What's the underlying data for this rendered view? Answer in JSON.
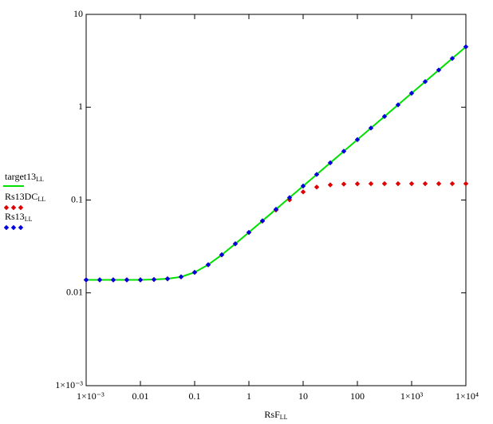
{
  "chart_data": {
    "type": "line",
    "xlabel": "RsF",
    "xlabel_sub": "LL",
    "xscale": "log",
    "yscale": "log",
    "grid": false,
    "legend": "left",
    "xlim": [
      0.001,
      10000
    ],
    "ylim": [
      0.001,
      10
    ],
    "xticks": [
      {
        "value": 0.001,
        "label": "1×10⁻³"
      },
      0.01,
      0.1,
      1,
      10,
      100,
      {
        "value": 1000,
        "label": "1×10³"
      },
      {
        "value": 10000,
        "label": "1×10⁴"
      }
    ],
    "yticks": [
      {
        "value": 0.001,
        "label": "1×10⁻³"
      },
      0.01,
      0.1,
      1,
      10
    ],
    "x": [
      0.001,
      0.001778,
      0.003162,
      0.005623,
      0.01,
      0.01778,
      0.03162,
      0.05623,
      0.1,
      0.1778,
      0.3162,
      0.5623,
      1,
      1.778,
      3.162,
      5.623,
      10,
      17.78,
      31.62,
      56.23,
      100,
      177.8,
      316.2,
      562.3,
      1000,
      1778,
      3162,
      5623,
      10000
    ],
    "series": [
      {
        "name": "target13",
        "name_sub": "LL",
        "style": "line",
        "color": "#00e000",
        "values": [
          0.0138,
          0.0138,
          0.0138,
          0.0138,
          0.0138,
          0.01392,
          0.01417,
          0.01487,
          0.01662,
          0.02009,
          0.0257,
          0.03377,
          0.04482,
          0.05968,
          0.07953,
          0.1061,
          0.1414,
          0.1886,
          0.2515,
          0.3354,
          0.4472,
          0.5963,
          0.7953,
          1.0605,
          1.414,
          1.886,
          2.515,
          3.354,
          4.472
        ]
      },
      {
        "name": "Rs13DC",
        "name_sub": "LL",
        "style": "marker",
        "color": "#e00000",
        "values": [
          0.0138,
          0.0138,
          0.0138,
          0.0138,
          0.0138,
          0.01392,
          0.01417,
          0.01487,
          0.01662,
          0.02009,
          0.0257,
          0.03377,
          0.0447,
          0.0593,
          0.078,
          0.1004,
          0.1223,
          0.1379,
          0.1456,
          0.1485,
          0.1495,
          0.1499,
          0.15,
          0.15,
          0.15,
          0.15,
          0.15,
          0.15,
          0.15
        ]
      },
      {
        "name": "Rs13",
        "name_sub": "LL",
        "style": "marker",
        "color": "#0000e0",
        "values": [
          0.0138,
          0.0138,
          0.0138,
          0.0138,
          0.0138,
          0.01392,
          0.01417,
          0.01487,
          0.01662,
          0.02009,
          0.0257,
          0.03377,
          0.04482,
          0.05968,
          0.07953,
          0.1061,
          0.1414,
          0.1886,
          0.2515,
          0.3354,
          0.4472,
          0.5963,
          0.7953,
          1.0605,
          1.414,
          1.886,
          2.515,
          3.354,
          4.472
        ]
      }
    ]
  }
}
